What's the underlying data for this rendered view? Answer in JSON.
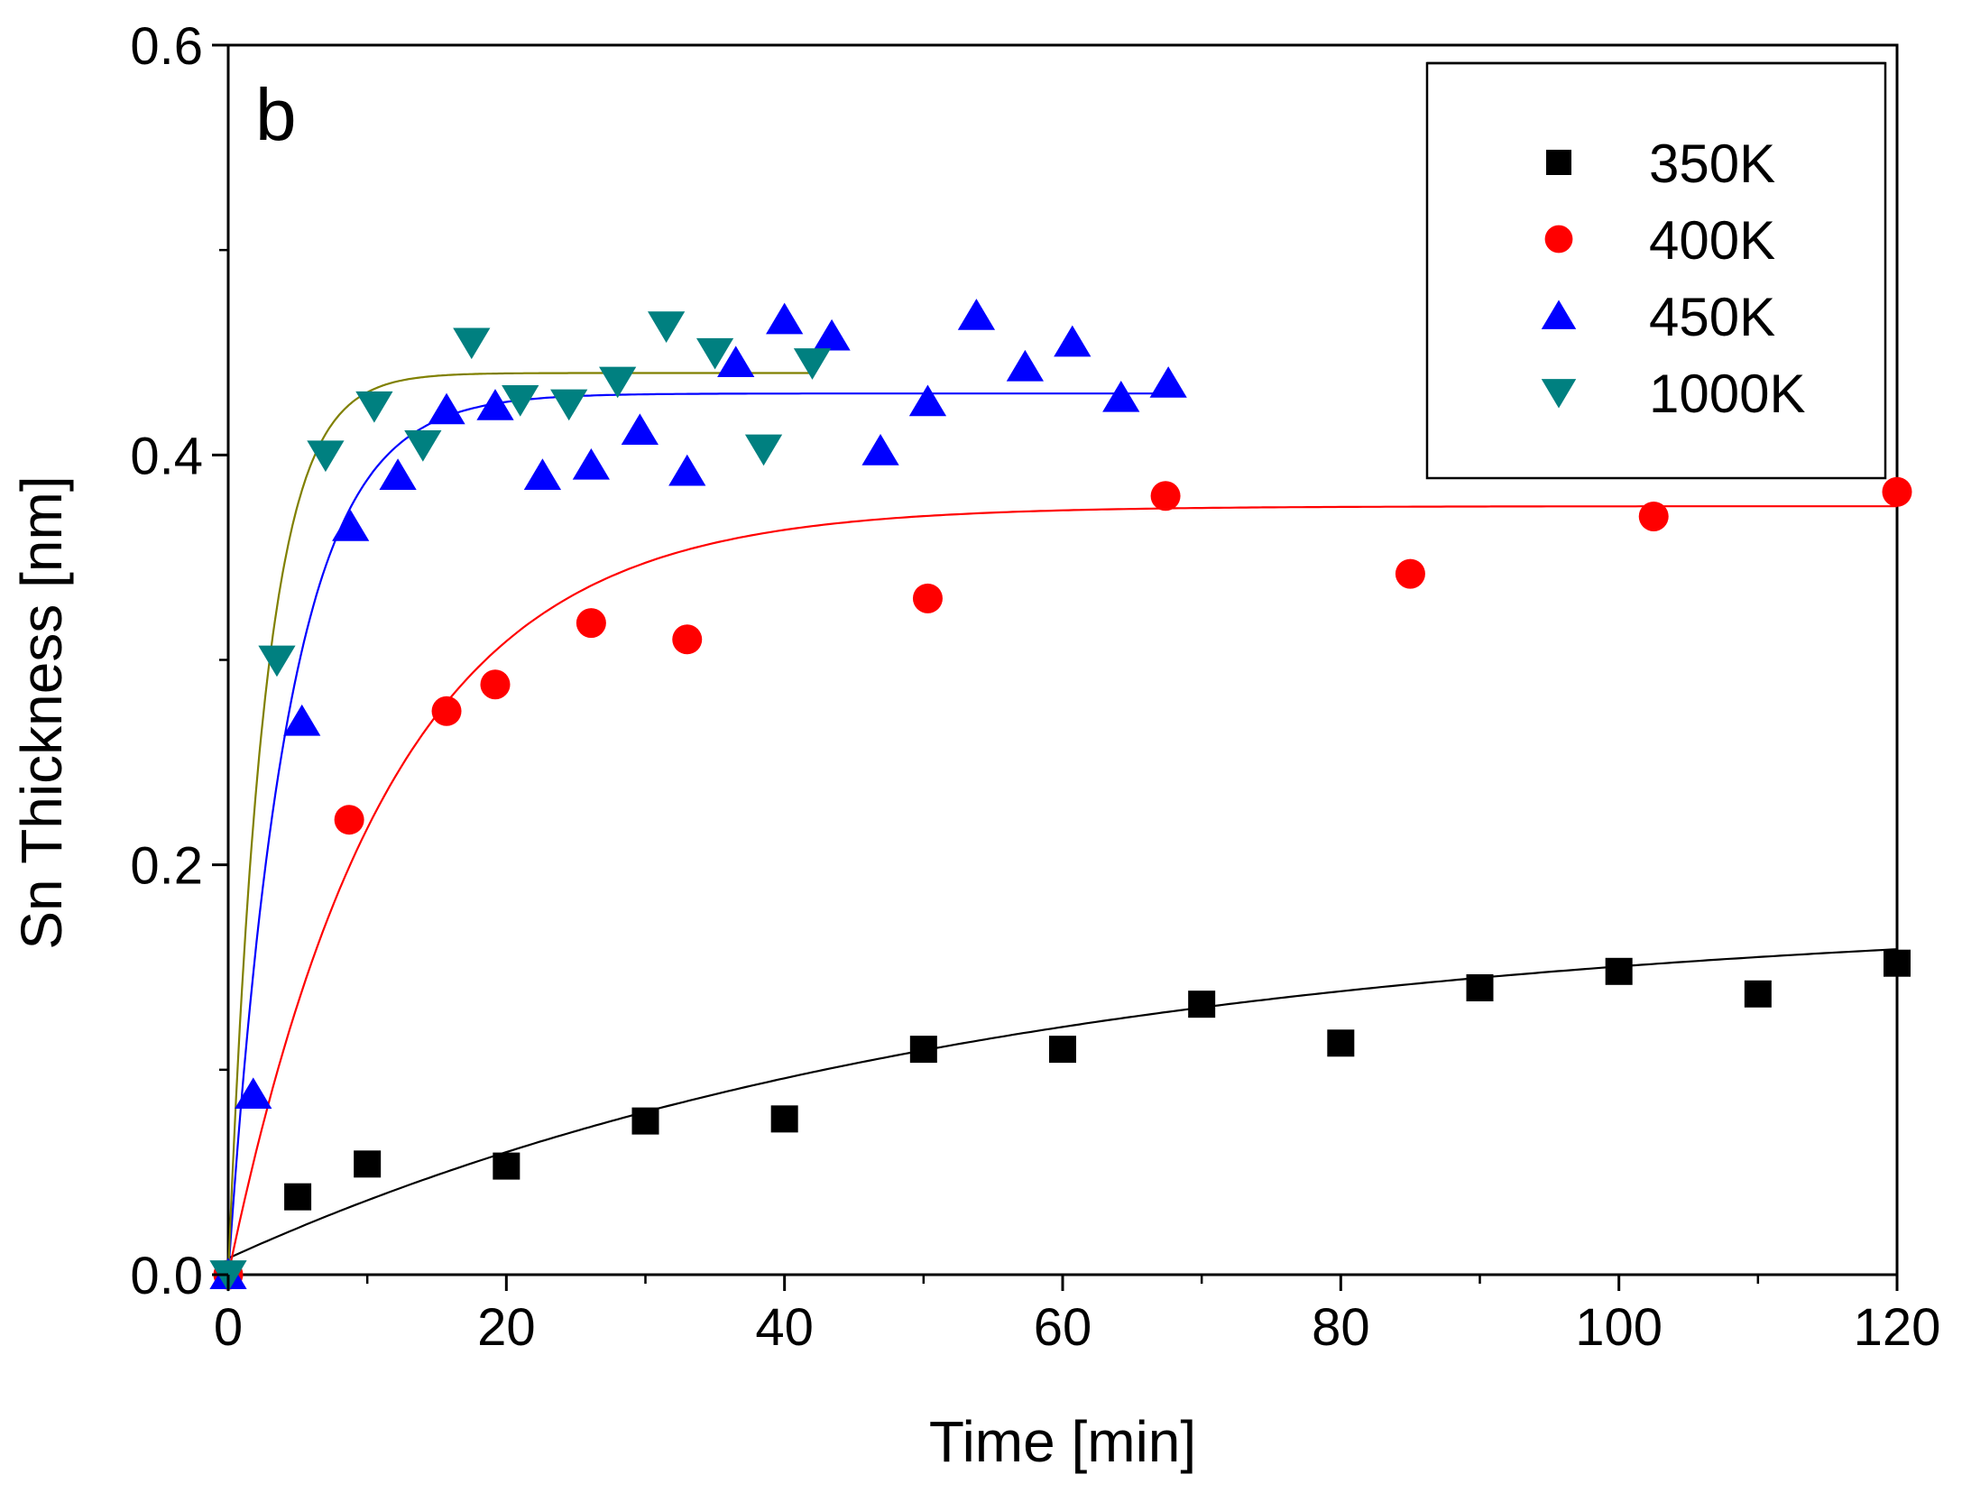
{
  "chart_data": {
    "type": "scatter",
    "panel_label": "b",
    "xlabel": "Time [min]",
    "ylabel": "Sn Thickness [nm]",
    "xlim": [
      0,
      120
    ],
    "ylim": [
      0,
      0.6
    ],
    "x_ticks": [
      0,
      20,
      40,
      60,
      80,
      100,
      120
    ],
    "x_tick_labels": [
      "0",
      "20",
      "40",
      "60",
      "80",
      "100",
      "120"
    ],
    "y_ticks": [
      0.0,
      0.2,
      0.4,
      0.6
    ],
    "y_tick_labels": [
      "0.0",
      "0.2",
      "0.4",
      "0.6"
    ],
    "y_minor_ticks": [
      0.1,
      0.3,
      0.5
    ],
    "legend_position": "top-right",
    "series": [
      {
        "name": "350K",
        "marker": "square",
        "color": "#000000",
        "fit_color": "#000000",
        "x": [
          0,
          5,
          10,
          20,
          30,
          40,
          50,
          60,
          70,
          80,
          90,
          100,
          110,
          120
        ],
        "y": [
          0.0,
          0.038,
          0.054,
          0.053,
          0.075,
          0.076,
          0.11,
          0.11,
          0.132,
          0.113,
          0.14,
          0.148,
          0.137,
          0.152
        ],
        "fit": {
          "a": 0.17,
          "tau": 55,
          "x0": 0,
          "x_end": 120,
          "offset": 0.008
        }
      },
      {
        "name": "400K",
        "marker": "circle",
        "color": "#ff0000",
        "fit_color": "#ff0000",
        "x": [
          0,
          8.7,
          15.7,
          19.2,
          26.1,
          33,
          50.3,
          67.4,
          85,
          102.5,
          120
        ],
        "y": [
          0.0,
          0.222,
          0.275,
          0.288,
          0.318,
          0.31,
          0.33,
          0.38,
          0.342,
          0.37,
          0.382
        ],
        "fit": {
          "a": 0.375,
          "tau": 11.5,
          "x0": 0,
          "x_end": 120,
          "offset": 0.0
        }
      },
      {
        "name": "450K",
        "marker": "triangle-up",
        "color": "#0000ff",
        "fit_color": "#0000ff",
        "x": [
          0,
          1.8,
          5.3,
          8.8,
          12.2,
          15.7,
          19.2,
          22.6,
          26.1,
          29.6,
          33,
          36.5,
          40,
          43.4,
          46.9,
          50.3,
          53.8,
          57.3,
          60.7,
          64.2,
          67.6
        ],
        "y": [
          0.0,
          0.088,
          0.27,
          0.365,
          0.39,
          0.422,
          0.424,
          0.39,
          0.395,
          0.412,
          0.392,
          0.445,
          0.466,
          0.458,
          0.402,
          0.426,
          0.468,
          0.443,
          0.455,
          0.428,
          0.435
        ],
        "fit": {
          "a": 0.43,
          "tau": 4.3,
          "x0": 0,
          "x_end": 68,
          "offset": 0.0
        }
      },
      {
        "name": "1000K",
        "marker": "triangle-down",
        "color": "#008080",
        "fit_color": "#808000",
        "x": [
          0,
          3.5,
          7,
          10.5,
          14,
          17.5,
          21,
          24.5,
          28,
          31.5,
          35,
          38.5,
          42
        ],
        "y": [
          0.0,
          0.3,
          0.4,
          0.424,
          0.405,
          0.455,
          0.427,
          0.425,
          0.436,
          0.463,
          0.45,
          0.403,
          0.445
        ],
        "fit": {
          "a": 0.44,
          "tau": 2.6,
          "x0": 0,
          "x_end": 42,
          "offset": 0.0
        }
      }
    ]
  }
}
